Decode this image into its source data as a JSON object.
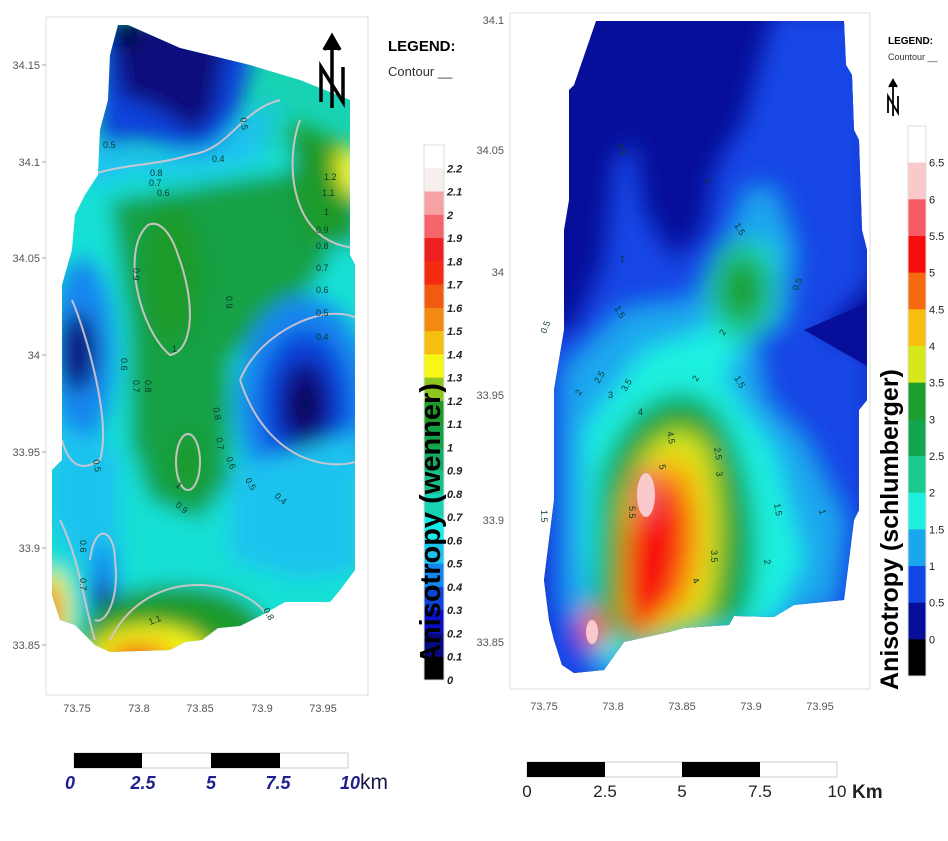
{
  "left_map": {
    "legend_title": "LEGEND:",
    "legend_item": "Contour __",
    "north_label": "N",
    "colorbar_title": "Anisotropy (wenner)",
    "colorbar_ticks": [
      "2.2",
      "2.1",
      "2",
      "1.9",
      "1.8",
      "1.7",
      "1.6",
      "1.5",
      "1.4",
      "1.3",
      "1.2",
      "1.1",
      "1",
      "0.9",
      "0.8",
      "0.7",
      "0.6",
      "0.5",
      "0.4",
      "0.3",
      "0.2",
      "0.1",
      "0"
    ],
    "colorbar_colors": [
      "#ffffff",
      "#f7efee",
      "#f6a2a5",
      "#f4646a",
      "#ee1f1f",
      "#f52a12",
      "#f25a12",
      "#f28a12",
      "#f6bf10",
      "#f7f715",
      "#8fc61e",
      "#1e9a2b",
      "#14a145",
      "#13aa62",
      "#15c08b",
      "#18d3b3",
      "#16ecea",
      "#1ac3ee",
      "#1387ee",
      "#0c43db",
      "#0a10c6",
      "#070a7d",
      "#000000"
    ],
    "y_ticks": [
      "34.15",
      "34.1",
      "34.05",
      "34",
      "33.95",
      "33.9",
      "33.85"
    ],
    "x_ticks": [
      "73.75",
      "73.8",
      "73.85",
      "73.9",
      "73.95"
    ],
    "contour_labels": [
      "0.5",
      "0.5",
      "0.4",
      "0.8",
      "0.7",
      "0.6",
      "1.2",
      "1.1",
      "1",
      "0.9",
      "0.8",
      "0.7",
      "0.6",
      "0.5",
      "0.4",
      "0.9",
      "0.9",
      "1",
      "0.6",
      "0.7",
      "0.8",
      "0.8",
      "0.7",
      "0.6",
      "0.5",
      "0.4",
      "0.5",
      "1",
      "0.9",
      "0.6",
      "0.7",
      "1.1",
      "0.8"
    ],
    "scale_bar": {
      "labels": [
        "0",
        "2.5",
        "5",
        "7.5",
        "10"
      ],
      "unit": "km"
    }
  },
  "right_map": {
    "legend_title": "LEGEND:",
    "legend_item": "Countour __",
    "north_label": "N",
    "colorbar_title": "Anisotropy (schlumberger)",
    "colorbar_ticks": [
      "6.5",
      "6",
      "5.5",
      "5",
      "4.5",
      "4",
      "3.5",
      "3",
      "2.5",
      "2",
      "1.5",
      "1",
      "0.5",
      "0"
    ],
    "colorbar_colors": [
      "#ffffff",
      "#f9c9cb",
      "#f65a62",
      "#f70d0d",
      "#f56a10",
      "#f8be10",
      "#d5e81c",
      "#1e9f2d",
      "#13a64e",
      "#1cc98e",
      "#1ef0e0",
      "#1aa7ee",
      "#1247e6",
      "#070e9a",
      "#000000"
    ],
    "y_ticks": [
      "34.1",
      "34.05",
      "34",
      "33.95",
      "33.9",
      "33.85"
    ],
    "x_ticks": [
      "73.75",
      "73.8",
      "73.85",
      "73.9",
      "73.95"
    ],
    "contour_labels": [
      "0.5",
      "1",
      "1.5",
      "1",
      "1.5",
      "2",
      "1.5",
      "0.5",
      "0.5",
      "2",
      "2.5",
      "3",
      "3.5",
      "4",
      "2",
      "4.5",
      "2.5",
      "3",
      "5",
      "5.5",
      "1.5",
      "1.5",
      "3.5",
      "2",
      "4",
      "1"
    ],
    "scale_bar": {
      "labels": [
        "0",
        "2.5",
        "5",
        "7.5",
        "10"
      ],
      "unit": "Km"
    }
  }
}
